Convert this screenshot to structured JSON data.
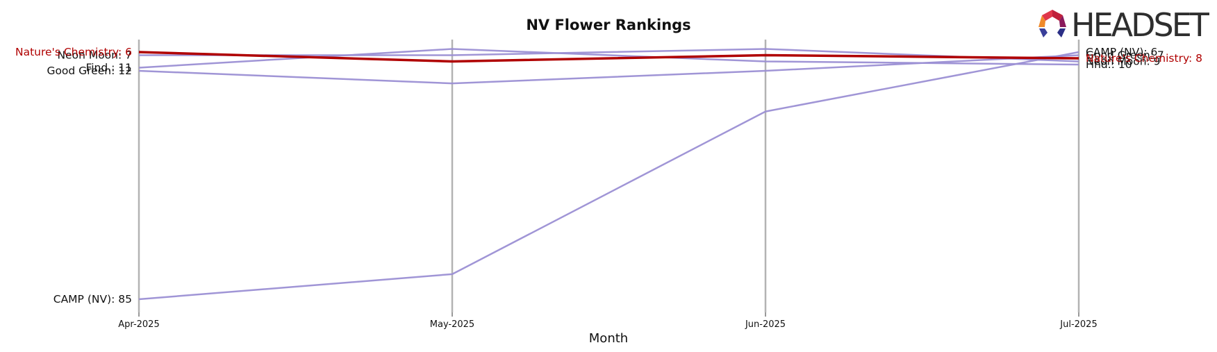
{
  "chart_data": {
    "type": "line",
    "title": "NV Flower Rankings",
    "xlabel": "Month",
    "ylabel": "",
    "categories": [
      "Apr-2025",
      "May-2025",
      "Jun-2025",
      "Jul-2025"
    ],
    "y_inverted": true,
    "ylim": [
      5,
      85
    ],
    "grid": false,
    "series": [
      {
        "name": "CAMP (NV)",
        "values": [
          85,
          77,
          25,
          6
        ],
        "color": "#9b8fd4",
        "highlight": false
      },
      {
        "name": "Good Green",
        "values": [
          12,
          16,
          12,
          7
        ],
        "color": "#9b8fd4",
        "highlight": false
      },
      {
        "name": "Find.",
        "values": [
          11,
          5,
          9,
          10
        ],
        "color": "#9b8fd4",
        "highlight": false
      },
      {
        "name": "Neon Moon",
        "values": [
          7,
          7,
          5,
          9
        ],
        "color": "#9b8fd4",
        "highlight": false
      },
      {
        "name": "Nature's Chemistry",
        "values": [
          6,
          9,
          7,
          8
        ],
        "color": "#b00000",
        "highlight": true
      }
    ]
  },
  "colors": {
    "highlight": "#b00000",
    "series": "#9b8fd4",
    "vline": "#b3b3b3",
    "logo_text": "#2e2e2e"
  },
  "logo": {
    "text": "HEADSET",
    "icon": "headset-hexagon-icon"
  }
}
